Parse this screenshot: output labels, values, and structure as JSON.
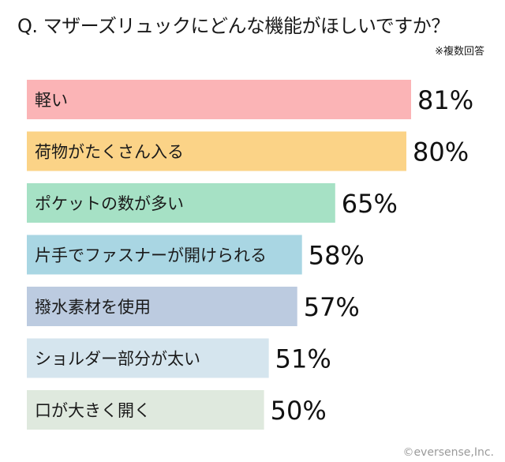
{
  "chart_data": {
    "type": "bar",
    "orientation": "horizontal",
    "title": "Q. マザーズリュックにどんな機能がほしいですか？",
    "note": "※複数回答",
    "unit": "%",
    "categories": [
      "軽い",
      "荷物がたくさん入る",
      "ポケットの数が多い",
      "片手でファスナーが開けられる",
      "撥水素材を使用",
      "ショルダー部分が太い",
      "口が大きく開く"
    ],
    "values": [
      81,
      80,
      65,
      58,
      57,
      51,
      50
    ],
    "value_labels": [
      "81%",
      "80%",
      "65%",
      "58%",
      "57%",
      "51%",
      "50%"
    ],
    "colors": [
      "#fbb4b6",
      "#fbd387",
      "#a6e1c5",
      "#a9d6e3",
      "#bccbe0",
      "#d5e5ee",
      "#dfe9de"
    ],
    "xlim": [
      0,
      81
    ],
    "grid": false,
    "legend": "none"
  },
  "credit": "©eversense,Inc."
}
